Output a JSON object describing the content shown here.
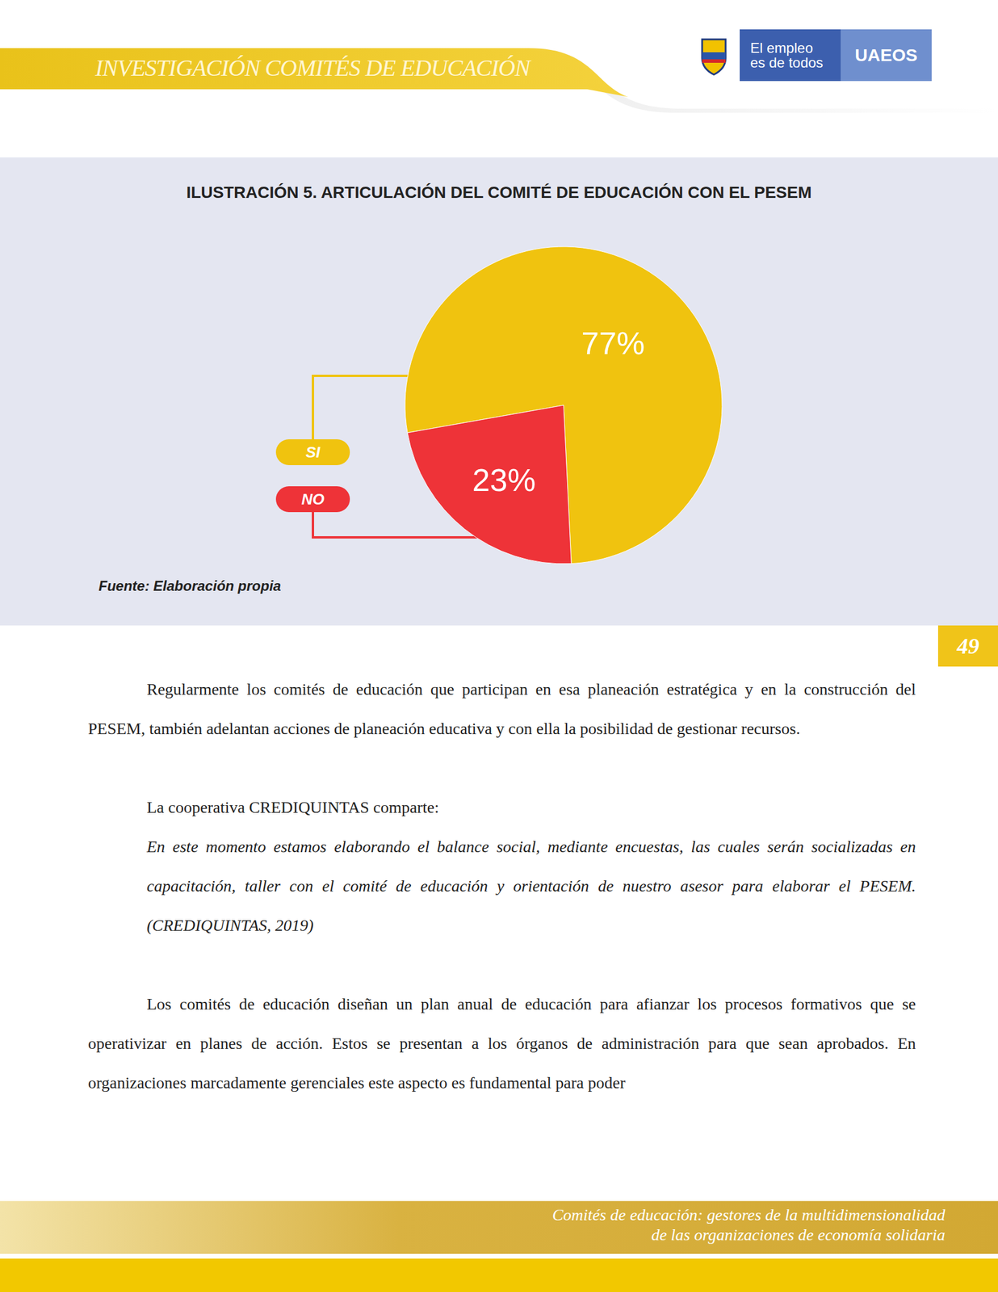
{
  "header": {
    "running_title": "INVESTIGACIÓN COMITÉS DE EDUCACIÓN",
    "logo": {
      "slogan": [
        "El empleo",
        "es de todos"
      ],
      "name": "UAEOS"
    }
  },
  "chart_data": {
    "type": "pie",
    "title": "ILUSTRACIÓN 5. ARTICULACIÓN DEL COMITÉ DE EDUCACIÓN CON EL PESEM",
    "categories": [
      "SI",
      "NO"
    ],
    "values": [
      77,
      23
    ],
    "value_labels": [
      "77%",
      "23%"
    ],
    "colors": [
      "#f0c30f",
      "#ee3338"
    ],
    "data_labels": true,
    "legend": "left",
    "source": "Fuente: Elaboración propia"
  },
  "page_number": "49",
  "body": [
    {
      "type": "paragraph",
      "text": "Regularmente los comités de educación que participan en esa planeación estratégica y en la construcción del PESEM, también adelantan acciones de planeación educativa y con ella la posibilidad de gestionar recursos."
    },
    {
      "type": "quote_intro",
      "text": "La cooperativa CREDIQUINTAS comparte:"
    },
    {
      "type": "quote",
      "text": "En este momento estamos elaborando el balance social, mediante encuestas, las cuales serán socializadas en capacitación, taller con el comité de educación y orientación de nuestro asesor para elaborar el PESEM. (CREDIQUINTAS, 2019)"
    },
    {
      "type": "paragraph",
      "text": "Los comités de educación diseñan un plan anual de educación para afianzar los procesos formativos que se operativizar en planes de acción. Estos se presentan a los órganos de administración para que sean aprobados. En organizaciones marcadamente gerenciales este aspecto es fundamental para poder"
    }
  ],
  "footer": [
    "Comités de educación: gestores de la multidimensionalidad",
    "de las organizaciones de economía solidaria"
  ]
}
